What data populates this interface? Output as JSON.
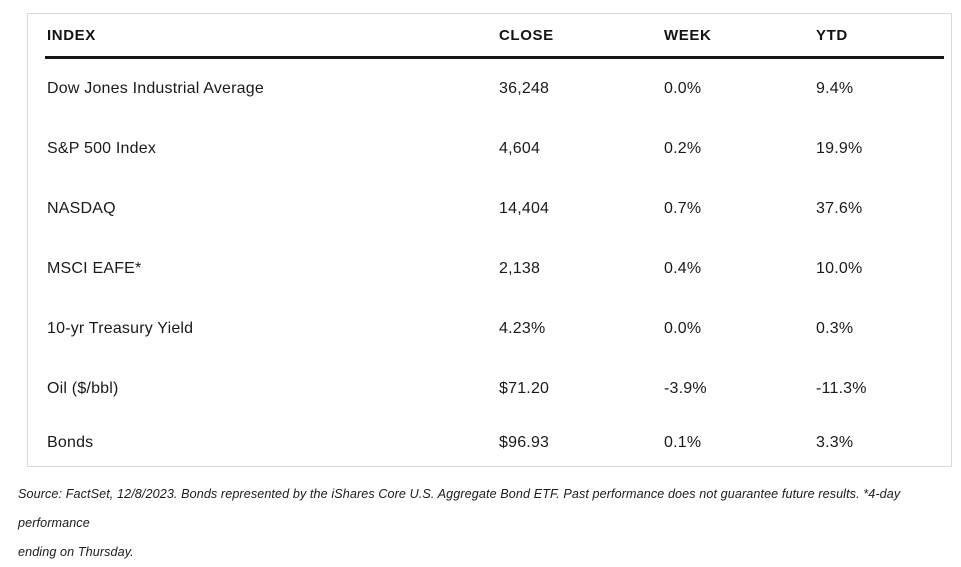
{
  "chart_data": {
    "type": "table",
    "columns": [
      "INDEX",
      "CLOSE",
      "WEEK",
      "YTD"
    ],
    "rows": [
      {
        "index": "Dow Jones Industrial Average",
        "close": "36,248",
        "week": "0.0%",
        "ytd": "9.4%"
      },
      {
        "index": "S&P 500 Index",
        "close": "4,604",
        "week": "0.2%",
        "ytd": "19.9%"
      },
      {
        "index": "NASDAQ",
        "close": "14,404",
        "week": "0.7%",
        "ytd": "37.6%"
      },
      {
        "index": "MSCI EAFE*",
        "close": "2,138",
        "week": "0.4%",
        "ytd": "10.0%"
      },
      {
        "index": "10-yr Treasury Yield",
        "close": "4.23%",
        "week": "0.0%",
        "ytd": "0.3%"
      },
      {
        "index": "Oil ($/bbl)",
        "close": "$71.20",
        "week": "-3.9%",
        "ytd": "-11.3%"
      },
      {
        "index": "Bonds",
        "close": "$96.93",
        "week": "0.1%",
        "ytd": "3.3%"
      }
    ],
    "title": "",
    "footnote": "Source: FactSet, 12/8/2023. Bonds represented by the iShares Core U.S. Aggregate Bond ETF. Past performance does not guarantee future results. *4-day performance ending on Thursday."
  },
  "footnote": {
    "line1": "Source: FactSet, 12/8/2023. Bonds represented by the iShares Core U.S. Aggregate Bond ETF. Past performance does not guarantee future results. *4-day performance",
    "line2": "ending on Thursday."
  },
  "colors": {
    "text": "#1a1a1a",
    "card_border": "#d9d9d9",
    "header_rule": "#151515",
    "background": "#ffffff"
  }
}
